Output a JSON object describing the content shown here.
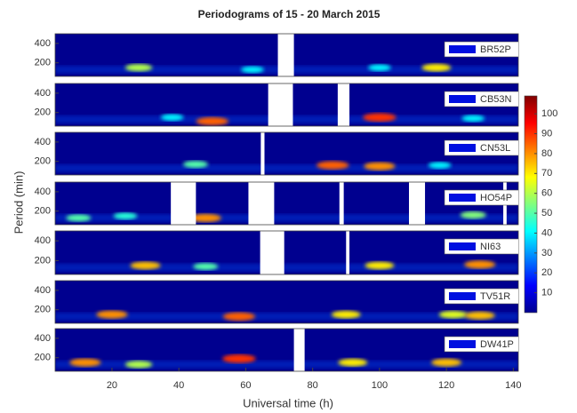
{
  "chart_data": {
    "type": "heatmap",
    "title": "Periodograms of 15 - 20 March 2015",
    "x_label": "Universal time (h)",
    "y_label": "Period (min)",
    "xlim": [
      3,
      141.5
    ],
    "xticks": [
      20,
      40,
      60,
      80,
      100,
      120,
      140
    ],
    "ylim": [
      60,
      500
    ],
    "yticks": [
      200,
      400
    ],
    "clim": [
      0,
      109
    ],
    "cticks": [
      10,
      20,
      30,
      40,
      50,
      60,
      70,
      80,
      90,
      100
    ],
    "panels": [
      {
        "name": "BR52P",
        "gaps": [
          [
            69.6,
            74.4
          ]
        ],
        "x": [
          28,
          62,
          100,
          117
        ],
        "period": [
          150,
          130,
          150,
          150
        ],
        "values": [
          60,
          40,
          40,
          70
        ]
      },
      {
        "name": "CB53N",
        "gaps": [
          [
            66.7,
            74.1
          ],
          [
            87.5,
            91
          ]
        ],
        "x": [
          38,
          50,
          100,
          128
        ],
        "period": [
          150,
          110,
          150,
          140
        ],
        "values": [
          40,
          85,
          90,
          40
        ]
      },
      {
        "name": "CN53L",
        "gaps": [
          [
            64.5,
            65.6
          ]
        ],
        "x": [
          45,
          86,
          100,
          118
        ],
        "period": [
          170,
          160,
          150,
          160
        ],
        "values": [
          50,
          85,
          80,
          40
        ]
      },
      {
        "name": "HO54P",
        "gaps": [
          [
            37.6,
            45.1
          ],
          [
            60.8,
            68.5
          ],
          [
            88,
            89.3
          ],
          [
            108.8,
            113.6
          ],
          [
            137,
            138
          ]
        ],
        "x": [
          10,
          24,
          48,
          128
        ],
        "period": [
          130,
          150,
          130,
          160
        ],
        "values": [
          50,
          45,
          80,
          55
        ]
      },
      {
        "name": "NI63",
        "gaps": [
          [
            64.3,
            71.5
          ],
          [
            90,
            91
          ]
        ],
        "x": [
          30,
          48,
          100,
          130
        ],
        "period": [
          150,
          140,
          150,
          160
        ],
        "values": [
          75,
          50,
          70,
          80
        ]
      },
      {
        "name": "TV51R",
        "gaps": [],
        "x": [
          20,
          58,
          90,
          122,
          130
        ],
        "period": [
          150,
          130,
          150,
          150,
          140
        ],
        "values": [
          80,
          85,
          70,
          65,
          75
        ]
      },
      {
        "name": "DW41P",
        "gaps": [
          [
            74.4,
            77.6
          ]
        ],
        "x": [
          12,
          28,
          58,
          92,
          120
        ],
        "period": [
          150,
          130,
          190,
          150,
          150
        ],
        "values": [
          80,
          60,
          90,
          70,
          75
        ]
      }
    ]
  }
}
